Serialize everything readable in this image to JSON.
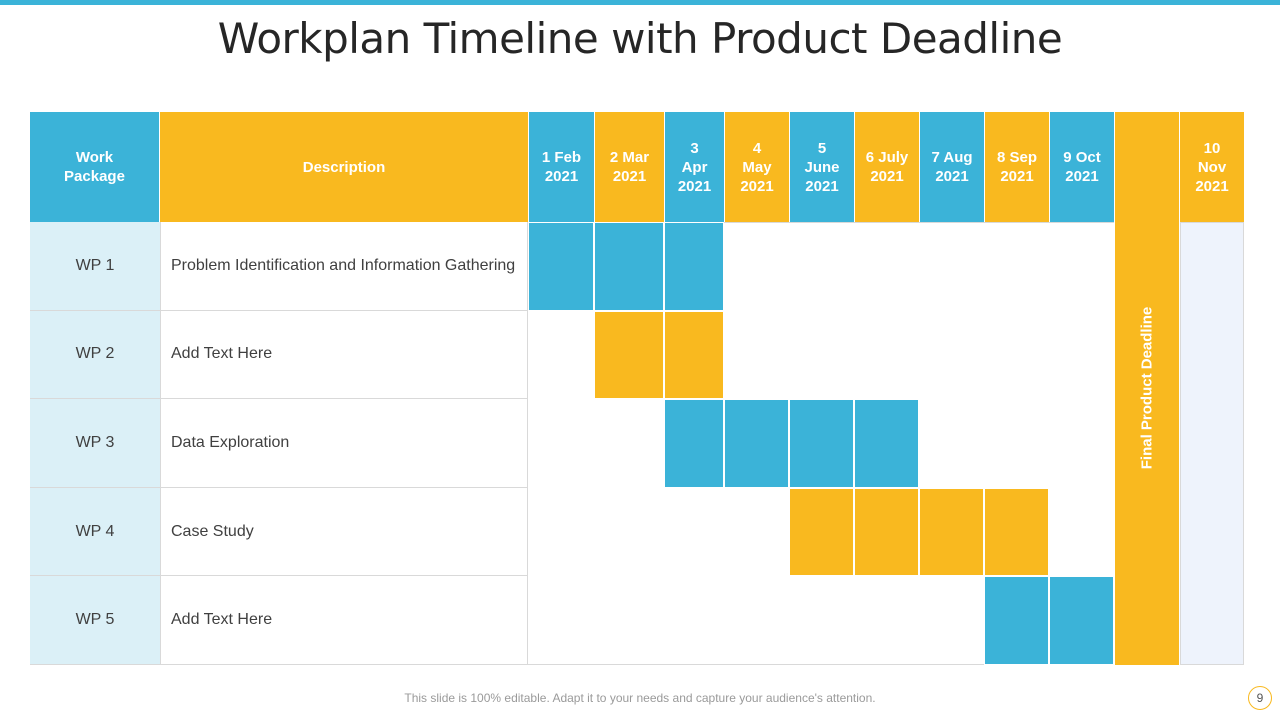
{
  "title": "Workplan Timeline with Product Deadline",
  "colors": {
    "blue": "#3bb3d8",
    "yellow": "#f9b91f",
    "wp_bg": "#dbf0f7"
  },
  "header": {
    "work_package": [
      "Work",
      "Package"
    ],
    "description": "Description",
    "months": [
      [
        "1 Feb",
        "2021"
      ],
      [
        "2 Mar",
        "2021"
      ],
      [
        "3",
        "Apr",
        "2021"
      ],
      [
        "4",
        "May",
        "2021"
      ],
      [
        "5",
        "June",
        "2021"
      ],
      [
        "6 July",
        "2021"
      ],
      [
        "7 Aug",
        "2021"
      ],
      [
        "8 Sep",
        "2021"
      ],
      [
        "9 Oct",
        "2021"
      ]
    ],
    "last_month": [
      "10",
      "Nov",
      "2021"
    ]
  },
  "deadline_label": "Final Product Deadline",
  "rows": [
    {
      "wp": "WP 1",
      "description": "Problem Identification and Information Gathering",
      "start_month": 1,
      "end_month": 3,
      "color": "blue"
    },
    {
      "wp": "WP 2",
      "description": "Add Text Here",
      "start_month": 2,
      "end_month": 3,
      "color": "yellow"
    },
    {
      "wp": "WP 3",
      "description": "Data Exploration",
      "start_month": 3,
      "end_month": 6,
      "color": "blue"
    },
    {
      "wp": "WP 4",
      "description": "Case Study",
      "start_month": 5,
      "end_month": 8,
      "color": "yellow"
    },
    {
      "wp": "WP 5",
      "description": "Add Text Here",
      "start_month": 8,
      "end_month": 9,
      "color": "blue"
    }
  ],
  "footer": "This slide is 100% editable. Adapt it to your needs and capture your audience's attention.",
  "page_number": "9"
}
